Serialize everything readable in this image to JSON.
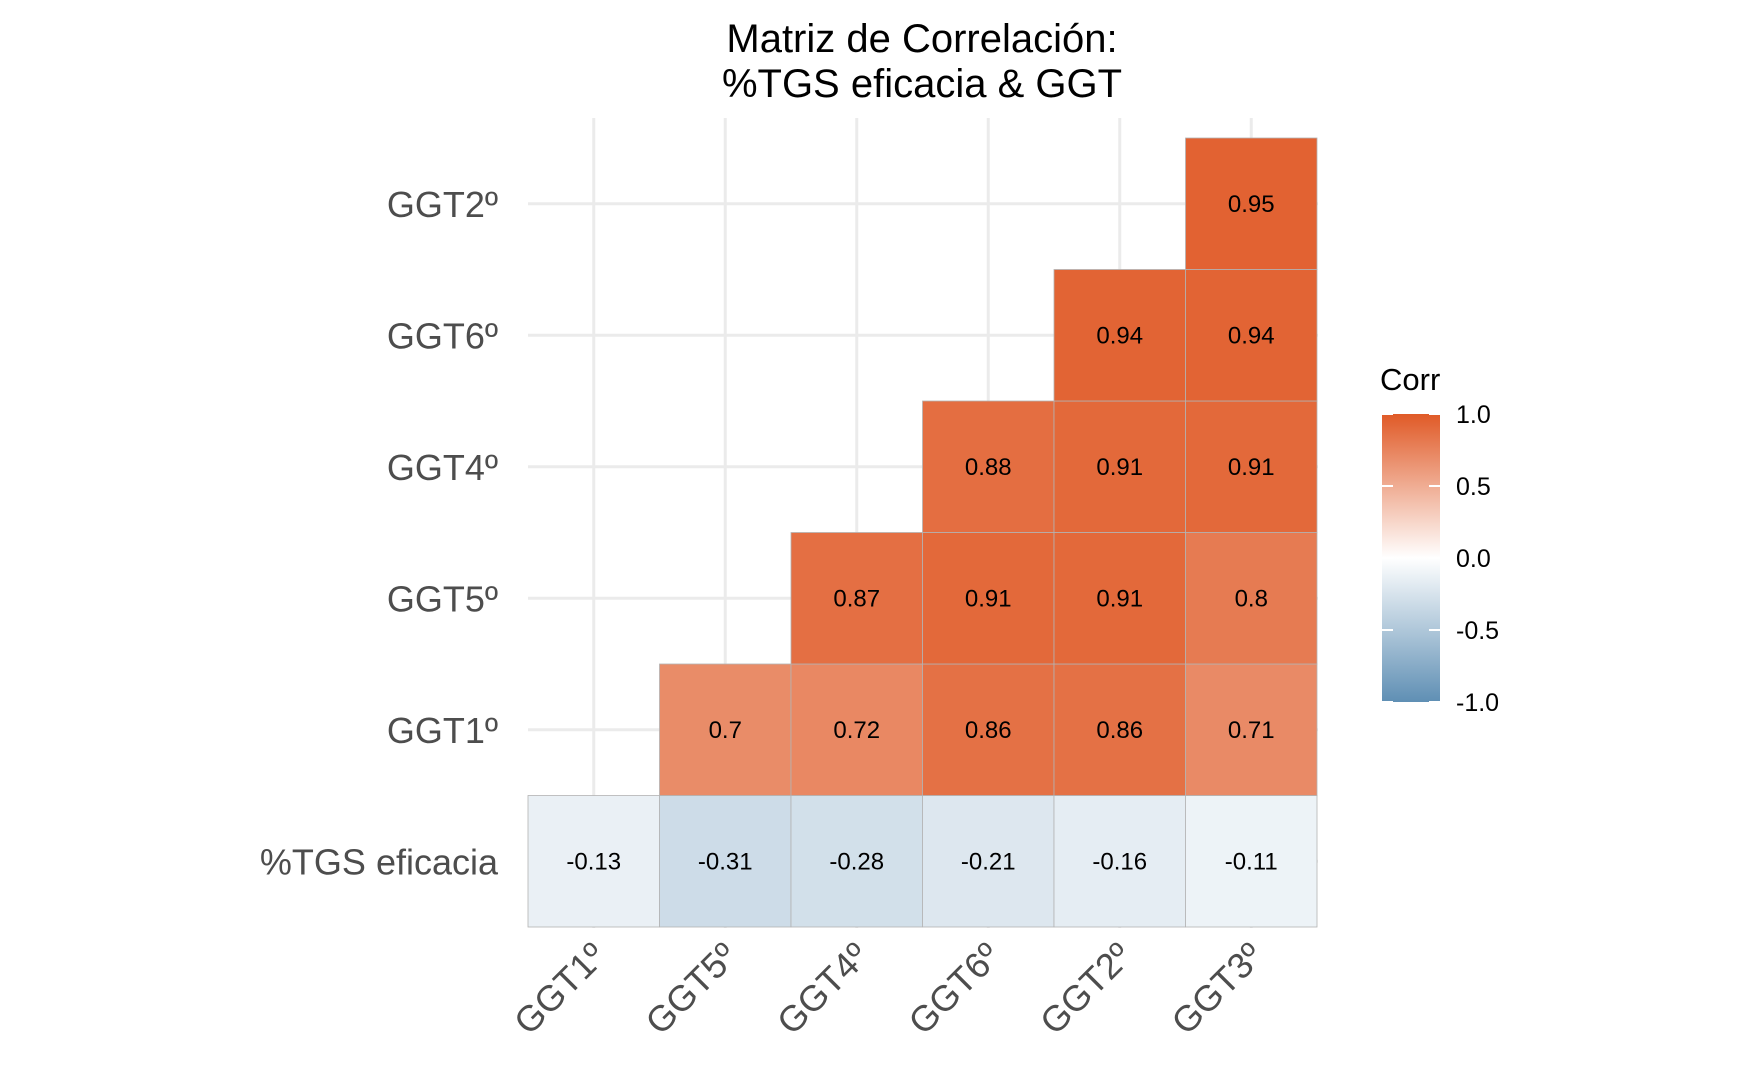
{
  "chart_data": {
    "type": "heatmap",
    "title": [
      "Matriz de Correlación:",
      "%TGS eficacia & GGT"
    ],
    "x_categories": [
      "GGT1º",
      "GGT5º",
      "GGT4º",
      "GGT6º",
      "GGT2º",
      "GGT3º"
    ],
    "y_categories": [
      "%TGS eficacia",
      "GGT1º",
      "GGT5º",
      "GGT4º",
      "GGT6º",
      "GGT2º"
    ],
    "cells": [
      {
        "x": "GGT1º",
        "y": "%TGS eficacia",
        "value": -0.13,
        "label": "-0.13"
      },
      {
        "x": "GGT5º",
        "y": "%TGS eficacia",
        "value": -0.31,
        "label": "-0.31"
      },
      {
        "x": "GGT4º",
        "y": "%TGS eficacia",
        "value": -0.28,
        "label": "-0.28"
      },
      {
        "x": "GGT6º",
        "y": "%TGS eficacia",
        "value": -0.21,
        "label": "-0.21"
      },
      {
        "x": "GGT2º",
        "y": "%TGS eficacia",
        "value": -0.16,
        "label": "-0.16"
      },
      {
        "x": "GGT3º",
        "y": "%TGS eficacia",
        "value": -0.11,
        "label": "-0.11"
      },
      {
        "x": "GGT5º",
        "y": "GGT1º",
        "value": 0.7,
        "label": "0.7"
      },
      {
        "x": "GGT4º",
        "y": "GGT1º",
        "value": 0.72,
        "label": "0.72"
      },
      {
        "x": "GGT6º",
        "y": "GGT1º",
        "value": 0.86,
        "label": "0.86"
      },
      {
        "x": "GGT2º",
        "y": "GGT1º",
        "value": 0.86,
        "label": "0.86"
      },
      {
        "x": "GGT3º",
        "y": "GGT1º",
        "value": 0.71,
        "label": "0.71"
      },
      {
        "x": "GGT4º",
        "y": "GGT5º",
        "value": 0.87,
        "label": "0.87"
      },
      {
        "x": "GGT6º",
        "y": "GGT5º",
        "value": 0.91,
        "label": "0.91"
      },
      {
        "x": "GGT2º",
        "y": "GGT5º",
        "value": 0.91,
        "label": "0.91"
      },
      {
        "x": "GGT3º",
        "y": "GGT5º",
        "value": 0.8,
        "label": "0.8"
      },
      {
        "x": "GGT6º",
        "y": "GGT4º",
        "value": 0.88,
        "label": "0.88"
      },
      {
        "x": "GGT2º",
        "y": "GGT4º",
        "value": 0.91,
        "label": "0.91"
      },
      {
        "x": "GGT3º",
        "y": "GGT4º",
        "value": 0.91,
        "label": "0.91"
      },
      {
        "x": "GGT2º",
        "y": "GGT6º",
        "value": 0.94,
        "label": "0.94"
      },
      {
        "x": "GGT3º",
        "y": "GGT6º",
        "value": 0.94,
        "label": "0.94"
      },
      {
        "x": "GGT3º",
        "y": "GGT2º",
        "value": 0.95,
        "label": "0.95"
      }
    ],
    "legend": {
      "title": "Corr",
      "placement": "right",
      "range": [
        -1,
        1
      ],
      "ticks": [
        {
          "value": 1.0,
          "label": "1.0"
        },
        {
          "value": 0.5,
          "label": "0.5"
        },
        {
          "value": 0.0,
          "label": "0.0"
        },
        {
          "value": -0.5,
          "label": "-0.5"
        },
        {
          "value": -1.0,
          "label": "-1.0"
        }
      ]
    },
    "colors": {
      "low": "#5f8fb4",
      "mid": "#ffffff",
      "high": "#e05a27",
      "grid": "#ebebeb",
      "cell_border": "#b3b3b3"
    },
    "grid": true
  }
}
